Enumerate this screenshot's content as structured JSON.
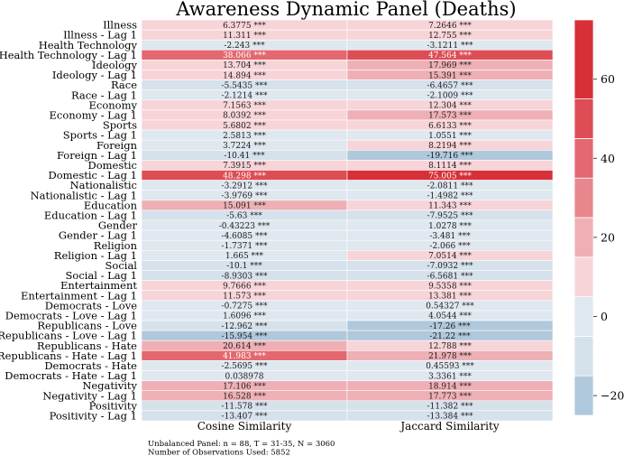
{
  "chart_data": {
    "type": "heatmap",
    "title": "Awareness Dynamic Panel (Deaths)",
    "columns": [
      "Cosine Similarity",
      "Jaccard Similarity"
    ],
    "rows": [
      "Illness",
      "Illness - Lag 1",
      "Health Technology",
      "Health Technology - Lag 1",
      "Ideology",
      "Ideology - Lag 1",
      "Race",
      "Race - Lag 1",
      "Economy",
      "Economy - Lag 1",
      "Sports",
      "Sports - Lag 1",
      "Foreign",
      "Foreign - Lag 1",
      "Domestic",
      "Domestic - Lag 1",
      "Nationalistic",
      "Nationalistic - Lag 1",
      "Education",
      "Education - Lag 1",
      "Gender",
      "Gender - Lag 1",
      "Religion",
      "Religion - Lag 1",
      "Social",
      "Social - Lag 1",
      "Entertainment",
      "Entertainment - Lag 1",
      "Democrats - Love",
      "Democrats - Love - Lag 1",
      "Republicans - Love",
      "Republicans - Love - Lag 1",
      "Republicans - Hate",
      "Republicans - Hate - Lag 1",
      "Democrats - Hate",
      "Democrats - Hate - Lag 1",
      "Negativity",
      "Negativity - Lag 1",
      "Positivity",
      "Positivity - Lag 1"
    ],
    "values": [
      [
        6.3775,
        7.2646
      ],
      [
        11.311,
        12.755
      ],
      [
        -2.243,
        -3.1211
      ],
      [
        38.066,
        47.564
      ],
      [
        13.704,
        17.969
      ],
      [
        14.894,
        15.391
      ],
      [
        -5.5435,
        -6.4657
      ],
      [
        -2.1214,
        -2.1009
      ],
      [
        7.1563,
        12.304
      ],
      [
        8.0392,
        17.573
      ],
      [
        5.6802,
        6.6133
      ],
      [
        2.5813,
        1.0551
      ],
      [
        3.7224,
        8.2194
      ],
      [
        -10.41,
        -19.716
      ],
      [
        7.3915,
        8.1114
      ],
      [
        48.298,
        75.005
      ],
      [
        -3.2912,
        -2.0811
      ],
      [
        -3.9769,
        -1.4982
      ],
      [
        15.091,
        11.343
      ],
      [
        -5.63,
        -7.9525
      ],
      [
        -0.43223,
        1.0278
      ],
      [
        -4.6085,
        -3.481
      ],
      [
        -1.7371,
        -2.066
      ],
      [
        1.665,
        7.0514
      ],
      [
        -10.1,
        -7.0932
      ],
      [
        -8.9303,
        -6.5681
      ],
      [
        9.7666,
        9.5358
      ],
      [
        11.573,
        13.381
      ],
      [
        -0.7275,
        0.54327
      ],
      [
        1.6096,
        4.0544
      ],
      [
        -12.962,
        -17.26
      ],
      [
        -15.954,
        -21.22
      ],
      [
        20.614,
        12.788
      ],
      [
        41.983,
        21.978
      ],
      [
        -2.5695,
        0.45593
      ],
      [
        0.038978,
        3.3361
      ],
      [
        17.106,
        18.914
      ],
      [
        16.528,
        17.773
      ],
      [
        -11.578,
        -11.382
      ],
      [
        -13.407,
        -13.384
      ]
    ],
    "labels": [
      [
        "6.3775 ***",
        "7.2646 ***"
      ],
      [
        "11.311 ***",
        "12.755 ***"
      ],
      [
        "-2.243 ***",
        "-3.1211 ***"
      ],
      [
        "38.066 ***",
        "47.564 ***"
      ],
      [
        "13.704 ***",
        "17.969 ***"
      ],
      [
        "14.894 ***",
        "15.391 ***"
      ],
      [
        "-5.5435 ***",
        "-6.4657 ***"
      ],
      [
        "-2.1214 ***",
        "-2.1009 ***"
      ],
      [
        "7.1563 ***",
        "12.304 ***"
      ],
      [
        "8.0392 ***",
        "17.573 ***"
      ],
      [
        "5.6802 ***",
        "6.6133 ***"
      ],
      [
        "2.5813 ***",
        "1.0551 ***"
      ],
      [
        "3.7224 ***",
        "8.2194 ***"
      ],
      [
        "-10.41 ***",
        "-19.716 ***"
      ],
      [
        "7.3915 ***",
        "8.1114 ***"
      ],
      [
        "48.298 ***",
        "75.005 ***"
      ],
      [
        "-3.2912 ***",
        "-2.0811 ***"
      ],
      [
        "-3.9769 ***",
        "-1.4982 ***"
      ],
      [
        "15.091 ***",
        "11.343 ***"
      ],
      [
        "-5.63 ***",
        "-7.9525 ***"
      ],
      [
        "-0.43223 ***",
        "1.0278 ***"
      ],
      [
        "-4.6085 ***",
        "-3.481 ***"
      ],
      [
        "-1.7371 ***",
        "-2.066 ***"
      ],
      [
        "1.665 ***",
        "7.0514 ***"
      ],
      [
        "-10.1 ***",
        "-7.0932 ***"
      ],
      [
        "-8.9303 ***",
        "-6.5681 ***"
      ],
      [
        "9.7666 ***",
        "9.5358 ***"
      ],
      [
        "11.573 ***",
        "13.381 ***"
      ],
      [
        "-0.7275 ***",
        "0.54327 ***"
      ],
      [
        "1.6096 ***",
        "4.0544 ***"
      ],
      [
        "-12.962 ***",
        "-17.26 ***"
      ],
      [
        "-15.954 ***",
        "-21.22 ***"
      ],
      [
        "20.614 ***",
        "12.788 ***"
      ],
      [
        "41.983 ***",
        "21.978 ***"
      ],
      [
        "-2.5695 ***",
        "0.45593 ***"
      ],
      [
        "0.038978",
        "3.3361 ***"
      ],
      [
        "17.106 ***",
        "18.914 ***"
      ],
      [
        "16.528 ***",
        "17.773 ***"
      ],
      [
        "-11.578 ***",
        "-11.382 ***"
      ],
      [
        "-13.407 ***",
        "-13.384 ***"
      ]
    ],
    "colorbar": {
      "range": [
        -25,
        75
      ],
      "ticks": [
        -20,
        0,
        20,
        40,
        60
      ],
      "bins": [
        {
          "from": -25,
          "to": -15,
          "color": "#b0c8db"
        },
        {
          "from": -15,
          "to": -5,
          "color": "#d5e1eb"
        },
        {
          "from": -5,
          "to": 5,
          "color": "#dfe7ef"
        },
        {
          "from": 5,
          "to": 15,
          "color": "#f7d4d8"
        },
        {
          "from": 15,
          "to": 25,
          "color": "#eeb0b5"
        },
        {
          "from": 25,
          "to": 35,
          "color": "#e8878d"
        },
        {
          "from": 35,
          "to": 45,
          "color": "#e3686f"
        },
        {
          "from": 45,
          "to": 55,
          "color": "#dd4d55"
        },
        {
          "from": 55,
          "to": 75,
          "color": "#d73038"
        }
      ]
    },
    "legend": "colorbar right",
    "notes": [
      "Unbalanced Panel: n = 88, T = 31-35, N = 3060",
      "Number of Observations Used: 5852"
    ]
  }
}
